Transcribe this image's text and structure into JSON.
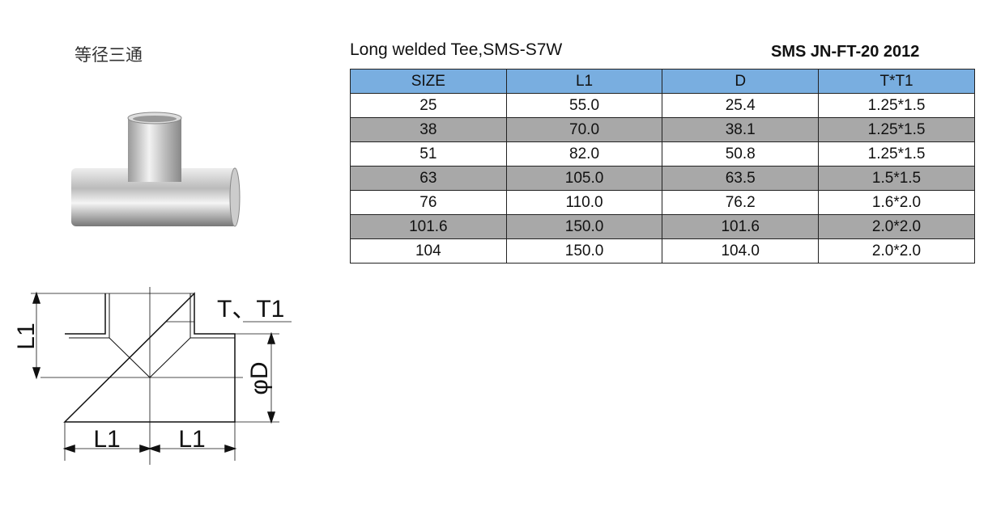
{
  "header": {
    "title_cn": "等径三通",
    "product": "Long welded Tee,SMS-S7W",
    "standard": "SMS  JN-FT-20 2012"
  },
  "table": {
    "columns": [
      "SIZE",
      "L1",
      "D",
      "T*T1"
    ],
    "rows": [
      [
        "25",
        "55.0",
        "25.4",
        "1.25*1.5"
      ],
      [
        "38",
        "70.0",
        "38.1",
        "1.25*1.5"
      ],
      [
        "51",
        "82.0",
        "50.8",
        "1.25*1.5"
      ],
      [
        "63",
        "105.0",
        "63.5",
        "1.5*1.5"
      ],
      [
        "76",
        "110.0",
        "76.2",
        "1.6*2.0"
      ],
      [
        "101.6",
        "150.0",
        "101.6",
        "2.0*2.0"
      ],
      [
        "104",
        "150.0",
        "104.0",
        "2.0*2.0"
      ]
    ]
  },
  "drawing": {
    "thickness": "T、T1",
    "l1_vertical": "L1",
    "l1_left": "L1",
    "l1_right": "L1",
    "diameter": "φD"
  }
}
